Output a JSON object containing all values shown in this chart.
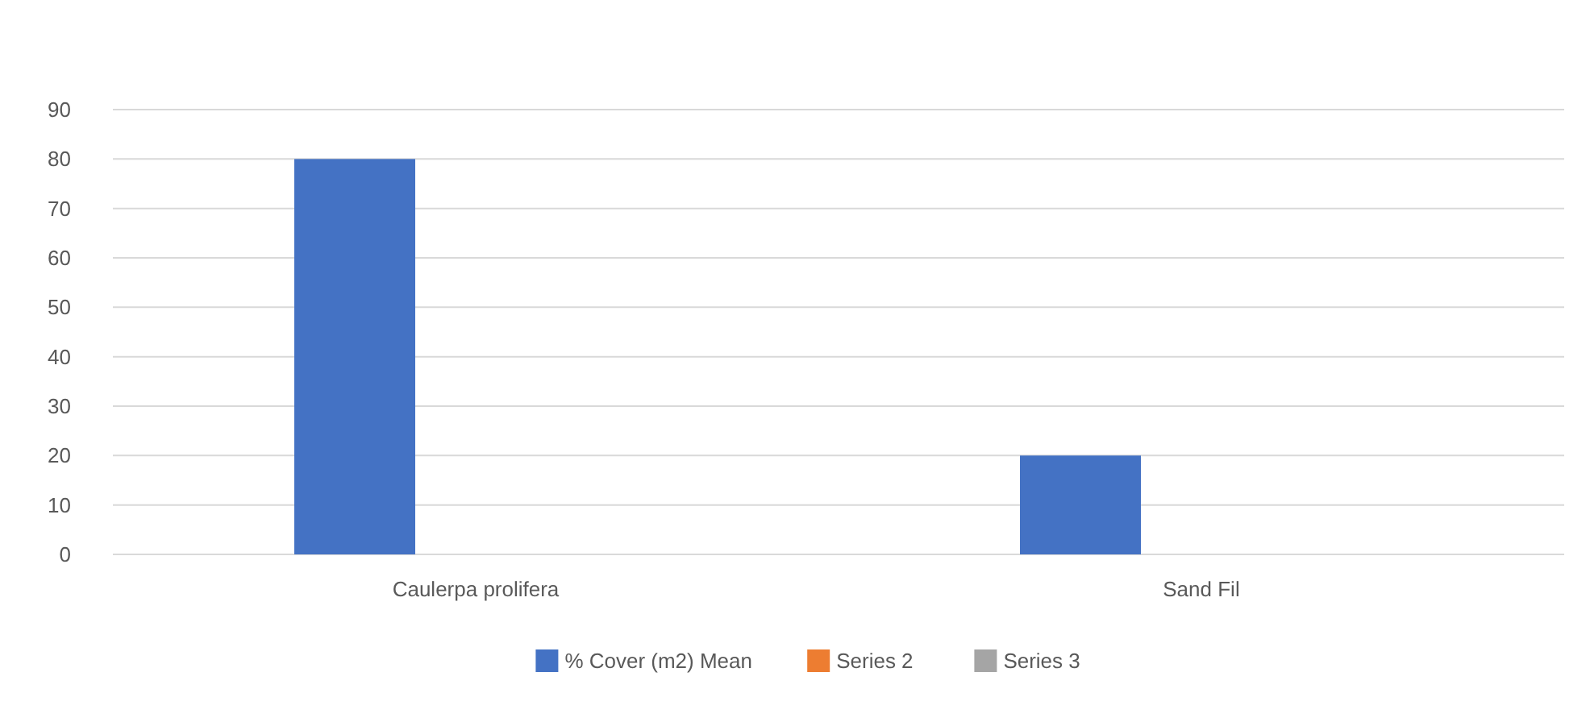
{
  "chart_data": {
    "type": "bar",
    "categories": [
      "Caulerpa prolifera",
      "Sand Fil"
    ],
    "series": [
      {
        "name": "% Cover (m2) Mean",
        "color": "#4472c4",
        "values": [
          80,
          20
        ]
      },
      {
        "name": "Series 2",
        "color": "#ed7d31",
        "values": [
          null,
          null
        ]
      },
      {
        "name": "Series 3",
        "color": "#a5a5a5",
        "values": [
          null,
          null
        ]
      }
    ],
    "ylim": [
      0,
      90
    ],
    "yticks": [
      0,
      10,
      20,
      30,
      40,
      50,
      60,
      70,
      80,
      90
    ],
    "grid": "y",
    "legend": "bottom"
  }
}
